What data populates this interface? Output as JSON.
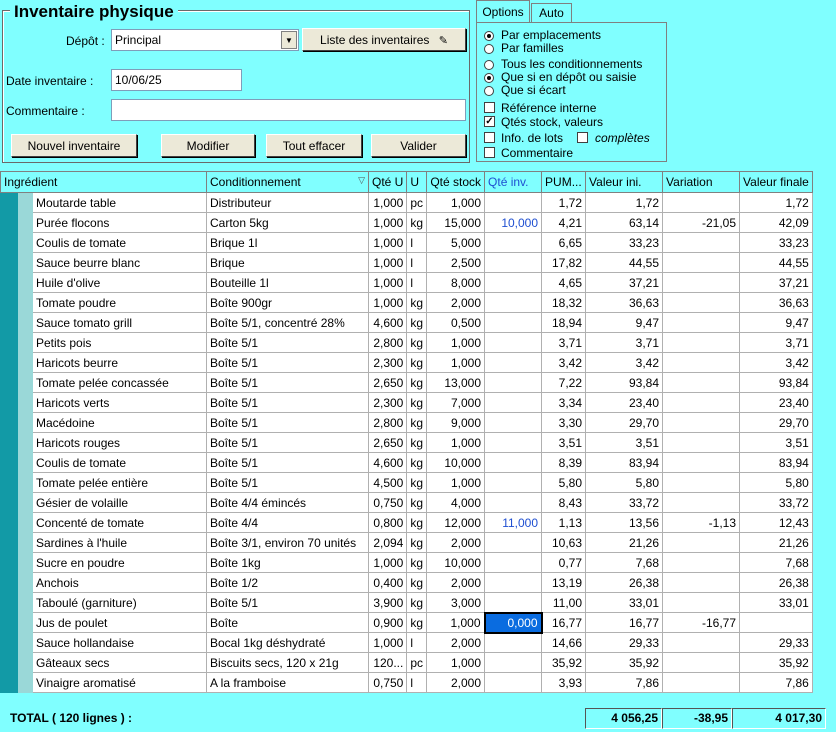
{
  "header": {
    "title": "Inventaire physique",
    "depot_label": "Dépôt :",
    "depot_value": "Principal",
    "list_button": "Liste des inventaires",
    "date_label": "Date inventaire :",
    "date_value": "10/06/25",
    "comment_label": "Commentaire :",
    "comment_value": ""
  },
  "buttons": {
    "new": "Nouvel inventaire",
    "edit": "Modifier",
    "clear": "Tout effacer",
    "validate": "Valider"
  },
  "tabs": [
    {
      "label": "Options"
    },
    {
      "label": "Auto"
    }
  ],
  "options": {
    "by_location": "Par emplacements",
    "by_family": "Par familles",
    "all_packaging": "Tous les conditionnements",
    "only_depot": "Que si en dépôt ou saisie",
    "only_gap": "Que si écart",
    "internal_ref": "Référence interne",
    "stock_qty": "Qtés stock, valeurs",
    "lot_info": "Info. de lots",
    "complete": "complètes",
    "comment": "Commentaire"
  },
  "columns": [
    "Ingrédient",
    "Conditionnement",
    "Qté U",
    "U",
    "Qté stock",
    "Qté inv.",
    "PUM...",
    "Valeur ini.",
    "Variation",
    "Valeur finale"
  ],
  "rows": [
    {
      "ingredient": "Moutarde table",
      "pack": "Distributeur",
      "qu": "1,000",
      "u": "pc",
      "stock": "1,000",
      "inv": "",
      "pum": "1,72",
      "ini": "1,72",
      "var": "",
      "fin": "1,72"
    },
    {
      "ingredient": "Purée flocons",
      "pack": "Carton 5kg",
      "qu": "1,000",
      "u": "kg",
      "stock": "15,000",
      "inv": "10,000",
      "pum": "4,21",
      "ini": "63,14",
      "var": "-21,05",
      "fin": "42,09"
    },
    {
      "ingredient": "Coulis de tomate",
      "pack": "Brique 1l",
      "qu": "1,000",
      "u": "l",
      "stock": "5,000",
      "inv": "",
      "pum": "6,65",
      "ini": "33,23",
      "var": "",
      "fin": "33,23"
    },
    {
      "ingredient": "Sauce beurre blanc",
      "pack": "Brique",
      "qu": "1,000",
      "u": "l",
      "stock": "2,500",
      "inv": "",
      "pum": "17,82",
      "ini": "44,55",
      "var": "",
      "fin": "44,55"
    },
    {
      "ingredient": "Huile d'olive",
      "pack": "Bouteille 1l",
      "qu": "1,000",
      "u": "l",
      "stock": "8,000",
      "inv": "",
      "pum": "4,65",
      "ini": "37,21",
      "var": "",
      "fin": "37,21"
    },
    {
      "ingredient": "Tomate poudre",
      "pack": "Boîte 900gr",
      "qu": "1,000",
      "u": "kg",
      "stock": "2,000",
      "inv": "",
      "pum": "18,32",
      "ini": "36,63",
      "var": "",
      "fin": "36,63"
    },
    {
      "ingredient": "Sauce tomato grill",
      "pack": "Boîte 5/1, concentré 28%",
      "qu": "4,600",
      "u": "kg",
      "stock": "0,500",
      "inv": "",
      "pum": "18,94",
      "ini": "9,47",
      "var": "",
      "fin": "9,47"
    },
    {
      "ingredient": "Petits pois",
      "pack": "Boîte 5/1",
      "qu": "2,800",
      "u": "kg",
      "stock": "1,000",
      "inv": "",
      "pum": "3,71",
      "ini": "3,71",
      "var": "",
      "fin": "3,71"
    },
    {
      "ingredient": "Haricots beurre",
      "pack": "Boîte 5/1",
      "qu": "2,300",
      "u": "kg",
      "stock": "1,000",
      "inv": "",
      "pum": "3,42",
      "ini": "3,42",
      "var": "",
      "fin": "3,42"
    },
    {
      "ingredient": "Tomate pelée concassée",
      "pack": "Boîte 5/1",
      "qu": "2,650",
      "u": "kg",
      "stock": "13,000",
      "inv": "",
      "pum": "7,22",
      "ini": "93,84",
      "var": "",
      "fin": "93,84"
    },
    {
      "ingredient": "Haricots verts",
      "pack": "Boîte 5/1",
      "qu": "2,300",
      "u": "kg",
      "stock": "7,000",
      "inv": "",
      "pum": "3,34",
      "ini": "23,40",
      "var": "",
      "fin": "23,40"
    },
    {
      "ingredient": "Macédoine",
      "pack": "Boîte 5/1",
      "qu": "2,800",
      "u": "kg",
      "stock": "9,000",
      "inv": "",
      "pum": "3,30",
      "ini": "29,70",
      "var": "",
      "fin": "29,70"
    },
    {
      "ingredient": "Haricots rouges",
      "pack": "Boîte 5/1",
      "qu": "2,650",
      "u": "kg",
      "stock": "1,000",
      "inv": "",
      "pum": "3,51",
      "ini": "3,51",
      "var": "",
      "fin": "3,51"
    },
    {
      "ingredient": "Coulis de tomate",
      "pack": "Boîte 5/1",
      "qu": "4,600",
      "u": "kg",
      "stock": "10,000",
      "inv": "",
      "pum": "8,39",
      "ini": "83,94",
      "var": "",
      "fin": "83,94"
    },
    {
      "ingredient": "Tomate pelée entière",
      "pack": "Boîte 5/1",
      "qu": "4,500",
      "u": "kg",
      "stock": "1,000",
      "inv": "",
      "pum": "5,80",
      "ini": "5,80",
      "var": "",
      "fin": "5,80"
    },
    {
      "ingredient": "Gésier de volaille",
      "pack": "Boîte 4/4 émincés",
      "qu": "0,750",
      "u": "kg",
      "stock": "4,000",
      "inv": "",
      "pum": "8,43",
      "ini": "33,72",
      "var": "",
      "fin": "33,72"
    },
    {
      "ingredient": "Concenté de tomate",
      "pack": "Boîte 4/4",
      "qu": "0,800",
      "u": "kg",
      "stock": "12,000",
      "inv": "11,000",
      "pum": "1,13",
      "ini": "13,56",
      "var": "-1,13",
      "fin": "12,43"
    },
    {
      "ingredient": "Sardines à l'huile",
      "pack": "Boîte 3/1, environ 70 unités",
      "qu": "2,094",
      "u": "kg",
      "stock": "2,000",
      "inv": "",
      "pum": "10,63",
      "ini": "21,26",
      "var": "",
      "fin": "21,26"
    },
    {
      "ingredient": "Sucre en poudre",
      "pack": "Boîte 1kg",
      "qu": "1,000",
      "u": "kg",
      "stock": "10,000",
      "inv": "",
      "pum": "0,77",
      "ini": "7,68",
      "var": "",
      "fin": "7,68"
    },
    {
      "ingredient": "Anchois",
      "pack": "Boîte 1/2",
      "qu": "0,400",
      "u": "kg",
      "stock": "2,000",
      "inv": "",
      "pum": "13,19",
      "ini": "26,38",
      "var": "",
      "fin": "26,38"
    },
    {
      "ingredient": "Taboulé (garniture)",
      "pack": "Boîte  5/1",
      "qu": "3,900",
      "u": "kg",
      "stock": "3,000",
      "inv": "",
      "pum": "11,00",
      "ini": "33,01",
      "var": "",
      "fin": "33,01"
    },
    {
      "ingredient": "Jus de poulet",
      "pack": "Boîte",
      "qu": "0,900",
      "u": "kg",
      "stock": "1,000",
      "inv": "0,000",
      "pum": "16,77",
      "ini": "16,77",
      "var": "-16,77",
      "fin": ""
    },
    {
      "ingredient": "Sauce hollandaise",
      "pack": "Bocal 1kg déshydraté",
      "qu": "1,000",
      "u": "l",
      "stock": "2,000",
      "inv": "",
      "pum": "14,66",
      "ini": "29,33",
      "var": "",
      "fin": "29,33"
    },
    {
      "ingredient": "Gâteaux secs",
      "pack": "Biscuits secs, 120 x 21g",
      "qu": "120...",
      "u": "pc",
      "stock": "1,000",
      "inv": "",
      "pum": "35,92",
      "ini": "35,92",
      "var": "",
      "fin": "35,92"
    },
    {
      "ingredient": "Vinaigre aromatisé",
      "pack": "A la framboise",
      "qu": "0,750",
      "u": "l",
      "stock": "2,000",
      "inv": "",
      "pum": "3,93",
      "ini": "7,86",
      "var": "",
      "fin": "7,86"
    }
  ],
  "total": {
    "label": "TOTAL ( 120 lignes ) :",
    "ini": "4 056,25",
    "var": "-38,95",
    "fin": "4 017,30"
  }
}
